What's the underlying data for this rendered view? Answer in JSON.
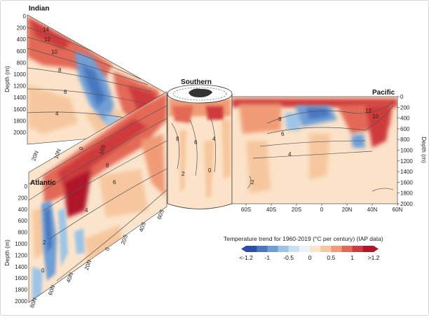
{
  "chart_data": {
    "type": "heatmap",
    "title": "",
    "colorbar": {
      "label": "Temperature trend for 1960-2019 (°C per century) (IAP data)",
      "ticks": [
        "<-1.2",
        "-1",
        "-0.5",
        "0",
        "0.5",
        "1",
        ">1.2"
      ],
      "colors": [
        "#2b4fa8",
        "#4a78c0",
        "#6f9fd5",
        "#9dc4e6",
        "#c9e0f1",
        "#ecf2f6",
        "#fbe4cc",
        "#f6c79e",
        "#f09b76",
        "#e36957",
        "#cf3b3e",
        "#b0172b"
      ]
    },
    "panels": [
      {
        "name": "Indian",
        "ylabel": "Depth (m)",
        "depth_ticks": [
          "0",
          "200",
          "400",
          "600",
          "800",
          "1000",
          "1200",
          "1400",
          "1600",
          "1800",
          "2000"
        ],
        "lat_ticks": [
          "20N",
          "10N",
          "0",
          "10S"
        ],
        "contour_labels": [
          "14",
          "12",
          "10",
          "8",
          "6",
          "4"
        ]
      },
      {
        "name": "Atlantic",
        "ylabel": "Depth (m)",
        "depth_ticks": [
          "0",
          "200",
          "400",
          "600",
          "800",
          "1000",
          "1200",
          "1400",
          "1600",
          "1800",
          "2000"
        ],
        "lat_ticks": [
          "80N",
          "60N",
          "40N",
          "20N",
          "0",
          "20S",
          "40S",
          "60S"
        ],
        "contour_labels": [
          "8",
          "6",
          "4",
          "2",
          "0"
        ]
      },
      {
        "name": "Southern",
        "contour_labels": [
          "8",
          "6",
          "4",
          "2",
          "0"
        ]
      },
      {
        "name": "Pacific",
        "ylabel": "Depth (m)",
        "depth_ticks": [
          "0",
          "200",
          "400",
          "600",
          "800",
          "1000",
          "1200",
          "1400",
          "1600",
          "1800",
          "2000"
        ],
        "lat_ticks": [
          "60S",
          "40S",
          "20S",
          "0",
          "20N",
          "40N",
          "60N"
        ],
        "contour_labels": [
          "12",
          "10",
          "8",
          "6",
          "4",
          "2"
        ]
      }
    ]
  }
}
